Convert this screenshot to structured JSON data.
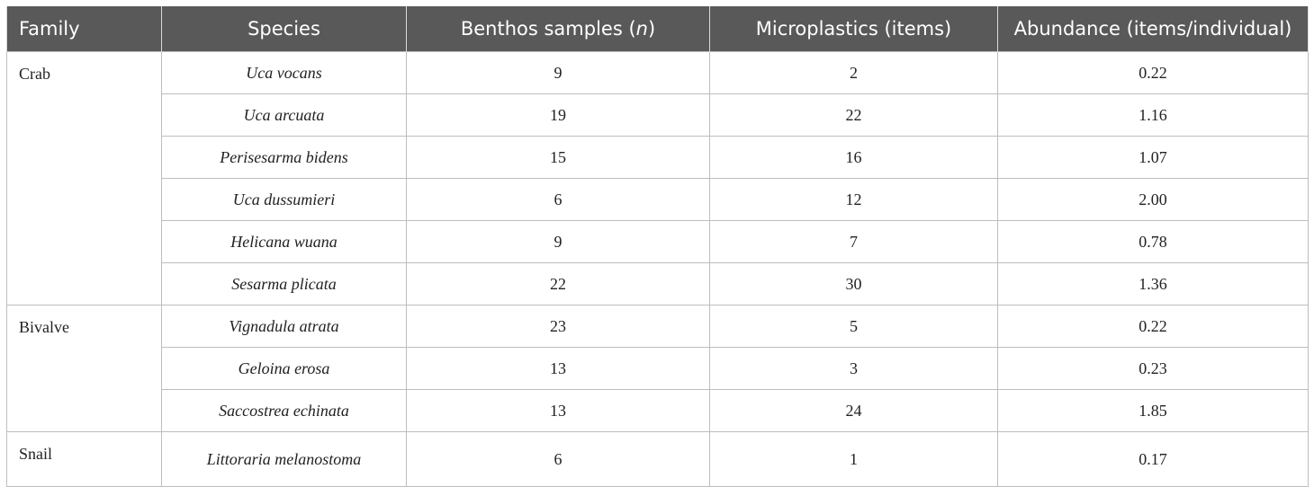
{
  "table": {
    "headers": {
      "family": "Family",
      "species": "Species",
      "benthos_prefix": "Benthos samples (",
      "benthos_n": "n",
      "benthos_suffix": ")",
      "microplastics": "Microplastics (items)",
      "abundance": "Abundance (items/individual)"
    },
    "groups": [
      {
        "family": "Crab",
        "rows": [
          {
            "species": "Uca vocans",
            "samples": "9",
            "microplastics": "2",
            "abundance": "0.22"
          },
          {
            "species": "Uca arcuata",
            "samples": "19",
            "microplastics": "22",
            "abundance": "1.16"
          },
          {
            "species": "Perisesarma bidens",
            "samples": "15",
            "microplastics": "16",
            "abundance": "1.07"
          },
          {
            "species": "Uca dussumieri",
            "samples": "6",
            "microplastics": "12",
            "abundance": "2.00"
          },
          {
            "species": "Helicana wuana",
            "samples": "9",
            "microplastics": "7",
            "abundance": "0.78"
          },
          {
            "species": "Sesarma plicata",
            "samples": "22",
            "microplastics": "30",
            "abundance": "1.36"
          }
        ]
      },
      {
        "family": "Bivalve",
        "rows": [
          {
            "species": "Vignadula atrata",
            "samples": "23",
            "microplastics": "5",
            "abundance": "0.22"
          },
          {
            "species": "Geloina erosa",
            "samples": "13",
            "microplastics": "3",
            "abundance": "0.23"
          },
          {
            "species": "Saccostrea echinata",
            "samples": "13",
            "microplastics": "24",
            "abundance": "1.85"
          }
        ]
      },
      {
        "family": "Snail",
        "rows": [
          {
            "species": "Littoraria melanostoma",
            "samples": "6",
            "microplastics": "1",
            "abundance": "0.17"
          }
        ]
      }
    ]
  }
}
